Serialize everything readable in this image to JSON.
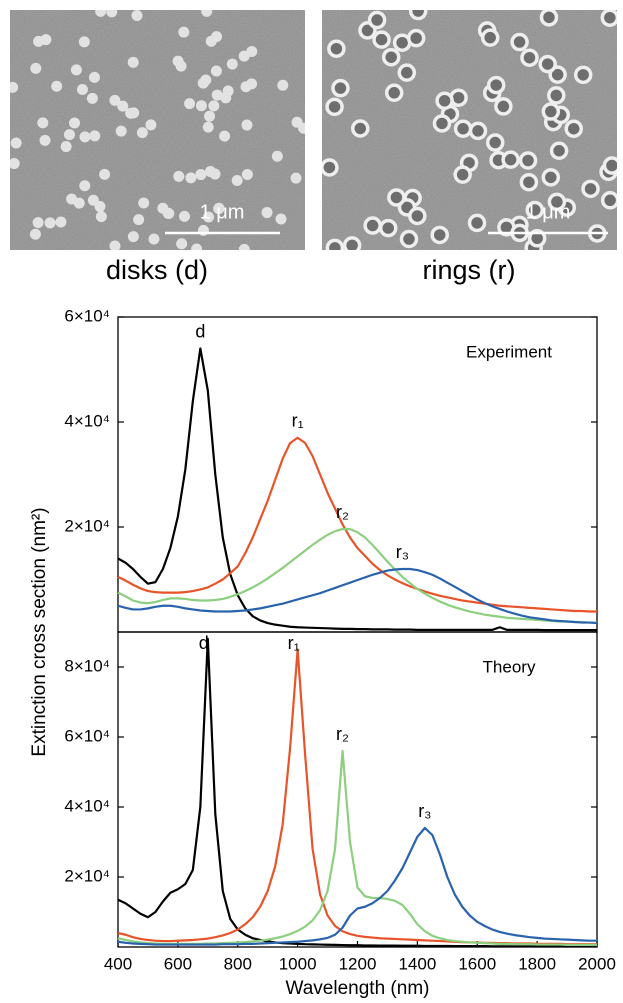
{
  "images": [
    {
      "caption": "disks (d)",
      "scale_bar": "1 μm"
    },
    {
      "caption": "rings (r)",
      "scale_bar": "1 μm"
    }
  ],
  "chart_data": [
    {
      "type": "line",
      "title": "Experiment",
      "ylabel": "Extinction cross section (nm²)",
      "xlim": [
        400,
        2000
      ],
      "ylim": [
        0,
        60000
      ],
      "yticks": [
        {
          "value": 20000,
          "label": "2×10⁴"
        },
        {
          "value": 40000,
          "label": "4×10⁴"
        },
        {
          "value": 60000,
          "label": "6×10⁴"
        }
      ],
      "x": [
        400,
        425,
        450,
        475,
        500,
        525,
        550,
        575,
        600,
        625,
        650,
        675,
        700,
        725,
        750,
        775,
        800,
        825,
        850,
        875,
        900,
        925,
        950,
        975,
        1000,
        1025,
        1050,
        1075,
        1100,
        1125,
        1150,
        1175,
        1200,
        1225,
        1250,
        1275,
        1300,
        1325,
        1350,
        1375,
        1400,
        1425,
        1450,
        1475,
        1500,
        1525,
        1550,
        1575,
        1600,
        1625,
        1650,
        1675,
        1700,
        1725,
        1750,
        1775,
        1800,
        1825,
        1850,
        1875,
        1900,
        1925,
        1950,
        1975,
        2000
      ],
      "series": [
        {
          "name": "d",
          "color": "#000000",
          "values": [
            14000,
            13200,
            12000,
            10500,
            9200,
            9500,
            12000,
            16000,
            22000,
            31000,
            44000,
            54000,
            46000,
            30000,
            18000,
            11000,
            7000,
            4500,
            3000,
            2200,
            1700,
            1400,
            1200,
            1000,
            900,
            850,
            800,
            750,
            700,
            650,
            600,
            600,
            550,
            550,
            500,
            500,
            500,
            450,
            450,
            450,
            400,
            400,
            400,
            400,
            400,
            400,
            400,
            400,
            400,
            400,
            400,
            900,
            400,
            400,
            400,
            400,
            400,
            350,
            350,
            350,
            350,
            350,
            350,
            350,
            350
          ]
        },
        {
          "name": "r₁",
          "color": "#e8542a",
          "values": [
            10500,
            9800,
            9000,
            8300,
            7800,
            7600,
            7500,
            7500,
            7500,
            7600,
            7800,
            8100,
            8500,
            9200,
            10000,
            11200,
            12500,
            15000,
            18000,
            21500,
            25000,
            29000,
            33000,
            36000,
            37000,
            36000,
            33500,
            30000,
            26500,
            23500,
            20500,
            18000,
            16000,
            14500,
            13000,
            11800,
            10800,
            10000,
            9300,
            8700,
            8200,
            7700,
            7300,
            6900,
            6600,
            6300,
            6000,
            5800,
            5600,
            5400,
            5200,
            5000,
            4900,
            4800,
            4700,
            4600,
            4500,
            4400,
            4300,
            4200,
            4100,
            4000,
            4000,
            3900,
            3900
          ]
        },
        {
          "name": "r₂",
          "color": "#8ccf7e",
          "values": [
            7500,
            6800,
            6000,
            5600,
            5500,
            5700,
            6100,
            6400,
            6400,
            6300,
            6100,
            6000,
            6000,
            6100,
            6300,
            6700,
            7200,
            7800,
            8500,
            9300,
            10200,
            11200,
            12200,
            13300,
            14400,
            15500,
            16600,
            17600,
            18500,
            19200,
            19600,
            19600,
            19000,
            18000,
            16600,
            15000,
            13400,
            11900,
            10500,
            9300,
            8200,
            7300,
            6500,
            5800,
            5200,
            4700,
            4300,
            3900,
            3600,
            3300,
            3100,
            2900,
            2700,
            2600,
            2500,
            2400,
            2300,
            2200,
            2100,
            2000,
            2000,
            1900,
            1900,
            1800,
            1800
          ]
        },
        {
          "name": "r₃",
          "color": "#2a63ad",
          "values": [
            5000,
            4600,
            4300,
            4300,
            4500,
            4800,
            5000,
            5000,
            4800,
            4500,
            4300,
            4100,
            4000,
            3900,
            3900,
            3900,
            4000,
            4100,
            4300,
            4500,
            4800,
            5100,
            5400,
            5800,
            6200,
            6600,
            7000,
            7400,
            7900,
            8400,
            8900,
            9400,
            9900,
            10400,
            10900,
            11300,
            11700,
            11900,
            12000,
            12000,
            11800,
            11400,
            10900,
            10200,
            9400,
            8600,
            7800,
            7000,
            6200,
            5500,
            4900,
            4400,
            3900,
            3500,
            3100,
            2800,
            2600,
            2400,
            2200,
            2100,
            2000,
            1900,
            1800,
            1800,
            1700
          ]
        }
      ]
    },
    {
      "type": "line",
      "title": "Theory",
      "xlabel": "Wavelength (nm)",
      "xlim": [
        400,
        2000
      ],
      "ylim": [
        0,
        90000
      ],
      "xticks": [
        400,
        600,
        800,
        1000,
        1200,
        1400,
        1600,
        1800,
        2000
      ],
      "yticks": [
        {
          "value": 20000,
          "label": "2×10⁴"
        },
        {
          "value": 40000,
          "label": "4×10⁴"
        },
        {
          "value": 60000,
          "label": "6×10⁴"
        },
        {
          "value": 80000,
          "label": "8×10⁴"
        }
      ],
      "x": [
        400,
        425,
        450,
        475,
        500,
        525,
        550,
        575,
        600,
        625,
        650,
        675,
        700,
        725,
        750,
        775,
        800,
        825,
        850,
        875,
        900,
        925,
        950,
        975,
        1000,
        1025,
        1050,
        1075,
        1100,
        1125,
        1150,
        1175,
        1200,
        1225,
        1250,
        1275,
        1300,
        1325,
        1350,
        1375,
        1400,
        1425,
        1450,
        1475,
        1500,
        1525,
        1550,
        1575,
        1600,
        1625,
        1650,
        1675,
        1700,
        1725,
        1750,
        1775,
        1800,
        1825,
        1850,
        1875,
        1900,
        1925,
        1950,
        1975,
        2000
      ],
      "series": [
        {
          "name": "d",
          "color": "#000000",
          "values": [
            13500,
            12500,
            11000,
            9500,
            8500,
            10000,
            13000,
            15500,
            16500,
            18000,
            22000,
            40000,
            88000,
            38000,
            16000,
            8000,
            5000,
            3500,
            2500,
            2000,
            1600,
            1300,
            1100,
            1000,
            900,
            800,
            750,
            700,
            650,
            600,
            550,
            500,
            500,
            450,
            450,
            400,
            400,
            400,
            350,
            350,
            350,
            300,
            300,
            300,
            300,
            250,
            250,
            250,
            250,
            250,
            200,
            200,
            200,
            200,
            200,
            200,
            200,
            200,
            200,
            200,
            200,
            200,
            200,
            200,
            200
          ]
        },
        {
          "name": "r₁",
          "color": "#e8542a",
          "values": [
            4000,
            3500,
            2800,
            2300,
            2000,
            1800,
            1700,
            1700,
            1800,
            1900,
            2000,
            2200,
            2400,
            2800,
            3300,
            4000,
            5000,
            6500,
            8500,
            11500,
            16000,
            23000,
            35000,
            57000,
            85000,
            55000,
            28000,
            15000,
            9000,
            6000,
            4500,
            3700,
            3200,
            2900,
            2700,
            2500,
            2400,
            2300,
            2200,
            2100,
            2000,
            1900,
            1800,
            1700,
            1600,
            1500,
            1400,
            1300,
            1300,
            1200,
            1200,
            1100,
            1100,
            1000,
            1000,
            1000,
            900,
            900,
            900,
            900,
            800,
            800,
            800,
            800,
            800
          ]
        },
        {
          "name": "r₂",
          "color": "#8ccf7e",
          "values": [
            2500,
            2000,
            1600,
            1300,
            1100,
            1000,
            900,
            900,
            900,
            900,
            900,
            900,
            1000,
            1000,
            1100,
            1200,
            1300,
            1400,
            1600,
            1800,
            2100,
            2500,
            3000,
            3700,
            4600,
            5800,
            7600,
            10500,
            16000,
            28000,
            56000,
            30000,
            17000,
            14500,
            14000,
            14000,
            13700,
            13200,
            12000,
            9500,
            6500,
            4500,
            3200,
            2500,
            2000,
            1700,
            1500,
            1300,
            1200,
            1100,
            1000,
            900,
            900,
            800,
            800,
            800,
            700,
            700,
            700,
            700,
            600,
            600,
            600,
            600,
            600
          ]
        },
        {
          "name": "r₃",
          "color": "#2a63ad",
          "values": [
            1500,
            1200,
            1000,
            900,
            800,
            700,
            700,
            700,
            700,
            700,
            700,
            700,
            700,
            700,
            800,
            800,
            800,
            900,
            900,
            1000,
            1100,
            1200,
            1300,
            1400,
            1500,
            1700,
            1900,
            2200,
            2600,
            3500,
            5500,
            9000,
            11000,
            11500,
            12500,
            14000,
            16000,
            19000,
            22500,
            27000,
            31500,
            34000,
            32000,
            26500,
            20000,
            15000,
            11500,
            9000,
            7200,
            6000,
            5000,
            4300,
            3800,
            3400,
            3100,
            2800,
            2600,
            2400,
            2300,
            2200,
            2100,
            2000,
            1900,
            1800,
            1800
          ]
        }
      ]
    }
  ]
}
